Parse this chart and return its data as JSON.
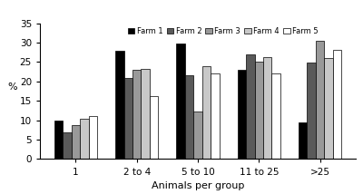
{
  "categories": [
    "1",
    "2 to 4",
    "5 to 10",
    "11 to 25",
    ">25"
  ],
  "farms": [
    "Farm 1",
    "Farm 2",
    "Farm 3",
    "Farm 4",
    "Farm 5"
  ],
  "values": [
    [
      10,
      28,
      29.7,
      23,
      9.5
    ],
    [
      7,
      21,
      21.5,
      27,
      24.8
    ],
    [
      8.7,
      23,
      12.3,
      25,
      30.4
    ],
    [
      10.3,
      23.3,
      24,
      26.3,
      26.1
    ],
    [
      11,
      16.3,
      22,
      22,
      28.2
    ]
  ],
  "colors": [
    "#000000",
    "#5a5a5a",
    "#999999",
    "#c8c8c8",
    "#ffffff"
  ],
  "bar_edge_color": "#000000",
  "ylim": [
    0,
    35
  ],
  "yticks": [
    0,
    5,
    10,
    15,
    20,
    25,
    30,
    35
  ],
  "ylabel": "%",
  "xlabel": "Animals per group",
  "bar_width": 0.14
}
